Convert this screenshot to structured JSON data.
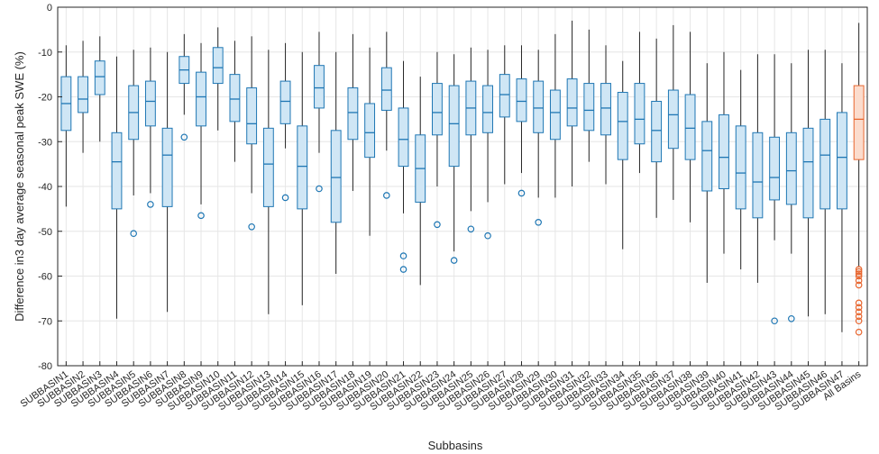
{
  "chart_data": {
    "type": "boxplot",
    "xlabel": "Subbasins",
    "ylabel": "Difference in3 day average seasonal peak SWE (%)",
    "ylim": [
      -80,
      0
    ],
    "yticks": [
      0,
      -10,
      -20,
      -30,
      -40,
      -50,
      -60,
      -70,
      -80
    ],
    "grid": true,
    "colors": {
      "subbasin": "#1f77b4",
      "subbasin_fill": "#cfe6f5",
      "all": "#e8662f",
      "all_fill": "#fbdccd",
      "axis": "#262626",
      "grid": "#e6e6e6"
    },
    "categories": [
      "SUBBASIN1",
      "SUBBASIN2",
      "SUBBASIN3",
      "SUBBASIN4",
      "SUBBASIN5",
      "SUBBASIN6",
      "SUBBASIN7",
      "SUBBASIN8",
      "SUBBASIN9",
      "SUBBASIN10",
      "SUBBASIN11",
      "SUBBASIN12",
      "SUBBASIN13",
      "SUBBASIN14",
      "SUBBASIN15",
      "SUBBASIN16",
      "SUBBASIN17",
      "SUBBASIN18",
      "SUBBASIN19",
      "SUBBASIN20",
      "SUBBASIN21",
      "SUBBASIN22",
      "SUBBASIN23",
      "SUBBASIN24",
      "SUBBASIN25",
      "SUBBASIN26",
      "SUBBASIN27",
      "SUBBASIN28",
      "SUBBASIN29",
      "SUBBASIN30",
      "SUBBASIN31",
      "SUBBASIN32",
      "SUBBASIN33",
      "SUBBASIN34",
      "SUBBASIN35",
      "SUBBASIN36",
      "SUBBASIN37",
      "SUBBASIN38",
      "SUBBASIN39",
      "SUBBASIN40",
      "SUBBASIN41",
      "SUBBASIN42",
      "SUBBASIN43",
      "SUBBASIN44",
      "SUBBASIN45",
      "SUBBASIN46",
      "SUBBASIN47",
      "All Basins"
    ],
    "boxes": [
      {
        "wmax": -8.5,
        "q3": -15.5,
        "med": -21.5,
        "q1": -27.5,
        "wmin": -44.5,
        "outliers": []
      },
      {
        "wmax": -7.5,
        "q3": -15.5,
        "med": -20.5,
        "q1": -23.5,
        "wmin": -32.5,
        "outliers": []
      },
      {
        "wmax": -6.5,
        "q3": -12.0,
        "med": -15.5,
        "q1": -19.5,
        "wmin": -30.0,
        "outliers": []
      },
      {
        "wmax": -11.0,
        "q3": -28.0,
        "med": -34.5,
        "q1": -45.0,
        "wmin": -69.5,
        "outliers": []
      },
      {
        "wmax": -9.5,
        "q3": -17.5,
        "med": -23.5,
        "q1": -29.5,
        "wmin": -42.0,
        "outliers": [
          -50.5
        ]
      },
      {
        "wmax": -9.0,
        "q3": -16.5,
        "med": -21.0,
        "q1": -26.5,
        "wmin": -41.5,
        "outliers": [
          -44.0
        ]
      },
      {
        "wmax": -10.0,
        "q3": -27.0,
        "med": -33.0,
        "q1": -44.5,
        "wmin": -68.0,
        "outliers": []
      },
      {
        "wmax": -6.0,
        "q3": -11.0,
        "med": -14.0,
        "q1": -17.0,
        "wmin": -24.0,
        "outliers": [
          -29.0
        ]
      },
      {
        "wmax": -8.0,
        "q3": -14.5,
        "med": -20.0,
        "q1": -26.5,
        "wmin": -44.0,
        "outliers": [
          -46.5
        ]
      },
      {
        "wmax": -4.5,
        "q3": -9.0,
        "med": -13.5,
        "q1": -17.0,
        "wmin": -27.5,
        "outliers": []
      },
      {
        "wmax": -7.5,
        "q3": -15.0,
        "med": -20.5,
        "q1": -25.5,
        "wmin": -34.5,
        "outliers": []
      },
      {
        "wmax": -6.5,
        "q3": -18.0,
        "med": -26.0,
        "q1": -30.5,
        "wmin": -41.5,
        "outliers": [
          -49.0
        ]
      },
      {
        "wmax": -9.5,
        "q3": -27.0,
        "med": -35.0,
        "q1": -44.5,
        "wmin": -68.5,
        "outliers": []
      },
      {
        "wmax": -8.0,
        "q3": -16.5,
        "med": -21.0,
        "q1": -26.0,
        "wmin": -31.5,
        "outliers": [
          -42.5
        ]
      },
      {
        "wmax": -10.0,
        "q3": -26.5,
        "med": -35.5,
        "q1": -45.0,
        "wmin": -66.5,
        "outliers": []
      },
      {
        "wmax": -5.5,
        "q3": -13.0,
        "med": -18.0,
        "q1": -22.5,
        "wmin": -32.5,
        "outliers": [
          -40.5
        ]
      },
      {
        "wmax": -10.0,
        "q3": -27.5,
        "med": -38.0,
        "q1": -48.0,
        "wmin": -59.5,
        "outliers": []
      },
      {
        "wmax": -6.0,
        "q3": -18.0,
        "med": -23.5,
        "q1": -29.5,
        "wmin": -41.0,
        "outliers": []
      },
      {
        "wmax": -9.0,
        "q3": -21.5,
        "med": -28.0,
        "q1": -33.5,
        "wmin": -51.0,
        "outliers": []
      },
      {
        "wmax": -5.5,
        "q3": -13.5,
        "med": -18.5,
        "q1": -23.0,
        "wmin": -32.0,
        "outliers": [
          -42.0
        ]
      },
      {
        "wmax": -12.0,
        "q3": -22.5,
        "med": -29.5,
        "q1": -35.5,
        "wmin": -46.0,
        "outliers": [
          -55.5,
          -58.5
        ]
      },
      {
        "wmax": -15.5,
        "q3": -28.5,
        "med": -36.0,
        "q1": -43.5,
        "wmin": -62.0,
        "outliers": []
      },
      {
        "wmax": -10.0,
        "q3": -17.0,
        "med": -23.5,
        "q1": -28.5,
        "wmin": -40.0,
        "outliers": [
          -48.5
        ]
      },
      {
        "wmax": -10.5,
        "q3": -17.5,
        "med": -26.0,
        "q1": -35.5,
        "wmin": -54.5,
        "outliers": [
          -56.5
        ]
      },
      {
        "wmax": -9.0,
        "q3": -16.5,
        "med": -22.5,
        "q1": -28.5,
        "wmin": -45.5,
        "outliers": [
          -49.5
        ]
      },
      {
        "wmax": -9.5,
        "q3": -17.5,
        "med": -23.5,
        "q1": -28.0,
        "wmin": -43.5,
        "outliers": [
          -51.0
        ]
      },
      {
        "wmax": -8.5,
        "q3": -15.0,
        "med": -19.5,
        "q1": -24.5,
        "wmin": -39.5,
        "outliers": []
      },
      {
        "wmax": -8.5,
        "q3": -16.0,
        "med": -21.0,
        "q1": -25.5,
        "wmin": -37.0,
        "outliers": [
          -41.5
        ]
      },
      {
        "wmax": -9.5,
        "q3": -16.5,
        "med": -22.5,
        "q1": -28.0,
        "wmin": -42.5,
        "outliers": [
          -48.0
        ]
      },
      {
        "wmax": -6.0,
        "q3": -18.5,
        "med": -23.5,
        "q1": -29.5,
        "wmin": -42.5,
        "outliers": []
      },
      {
        "wmax": -3.0,
        "q3": -16.0,
        "med": -22.5,
        "q1": -26.5,
        "wmin": -40.0,
        "outliers": []
      },
      {
        "wmax": -5.0,
        "q3": -17.0,
        "med": -23.0,
        "q1": -27.5,
        "wmin": -34.5,
        "outliers": []
      },
      {
        "wmax": -8.5,
        "q3": -17.0,
        "med": -22.5,
        "q1": -28.5,
        "wmin": -39.5,
        "outliers": []
      },
      {
        "wmax": -12.0,
        "q3": -19.0,
        "med": -25.5,
        "q1": -34.0,
        "wmin": -54.0,
        "outliers": []
      },
      {
        "wmax": -5.5,
        "q3": -17.0,
        "med": -25.0,
        "q1": -30.5,
        "wmin": -37.0,
        "outliers": []
      },
      {
        "wmax": -7.0,
        "q3": -21.0,
        "med": -27.5,
        "q1": -34.5,
        "wmin": -47.0,
        "outliers": []
      },
      {
        "wmax": -4.0,
        "q3": -18.5,
        "med": -24.0,
        "q1": -31.5,
        "wmin": -43.0,
        "outliers": []
      },
      {
        "wmax": -5.5,
        "q3": -19.5,
        "med": -27.0,
        "q1": -34.0,
        "wmin": -48.0,
        "outliers": []
      },
      {
        "wmax": -12.5,
        "q3": -25.5,
        "med": -32.0,
        "q1": -41.0,
        "wmin": -61.5,
        "outliers": []
      },
      {
        "wmax": -10.0,
        "q3": -24.0,
        "med": -33.5,
        "q1": -40.5,
        "wmin": -55.0,
        "outliers": []
      },
      {
        "wmax": -14.0,
        "q3": -26.5,
        "med": -37.0,
        "q1": -45.0,
        "wmin": -58.5,
        "outliers": []
      },
      {
        "wmax": -10.5,
        "q3": -28.0,
        "med": -39.0,
        "q1": -47.0,
        "wmin": -61.5,
        "outliers": []
      },
      {
        "wmax": -10.5,
        "q3": -29.0,
        "med": -38.0,
        "q1": -43.0,
        "wmin": -52.0,
        "outliers": [
          -70.0
        ]
      },
      {
        "wmax": -12.5,
        "q3": -28.0,
        "med": -36.5,
        "q1": -44.0,
        "wmin": -55.0,
        "outliers": [
          -69.5
        ]
      },
      {
        "wmax": -9.5,
        "q3": -27.0,
        "med": -34.5,
        "q1": -47.0,
        "wmin": -69.0,
        "outliers": []
      },
      {
        "wmax": -9.5,
        "q3": -25.0,
        "med": -33.0,
        "q1": -45.0,
        "wmin": -68.5,
        "outliers": []
      },
      {
        "wmax": -12.5,
        "q3": -23.5,
        "med": -33.5,
        "q1": -45.0,
        "wmin": -72.5,
        "outliers": []
      },
      {
        "wmax": -3.5,
        "q3": -17.5,
        "med": -25.0,
        "q1": -34.0,
        "wmin": -58.0,
        "outliers": [
          -58.5,
          -59.0,
          -59.5,
          -60.0,
          -61.0,
          -62.0,
          -66.0,
          -67.0,
          -68.0,
          -69.0,
          -70.0,
          -72.5
        ]
      }
    ]
  }
}
